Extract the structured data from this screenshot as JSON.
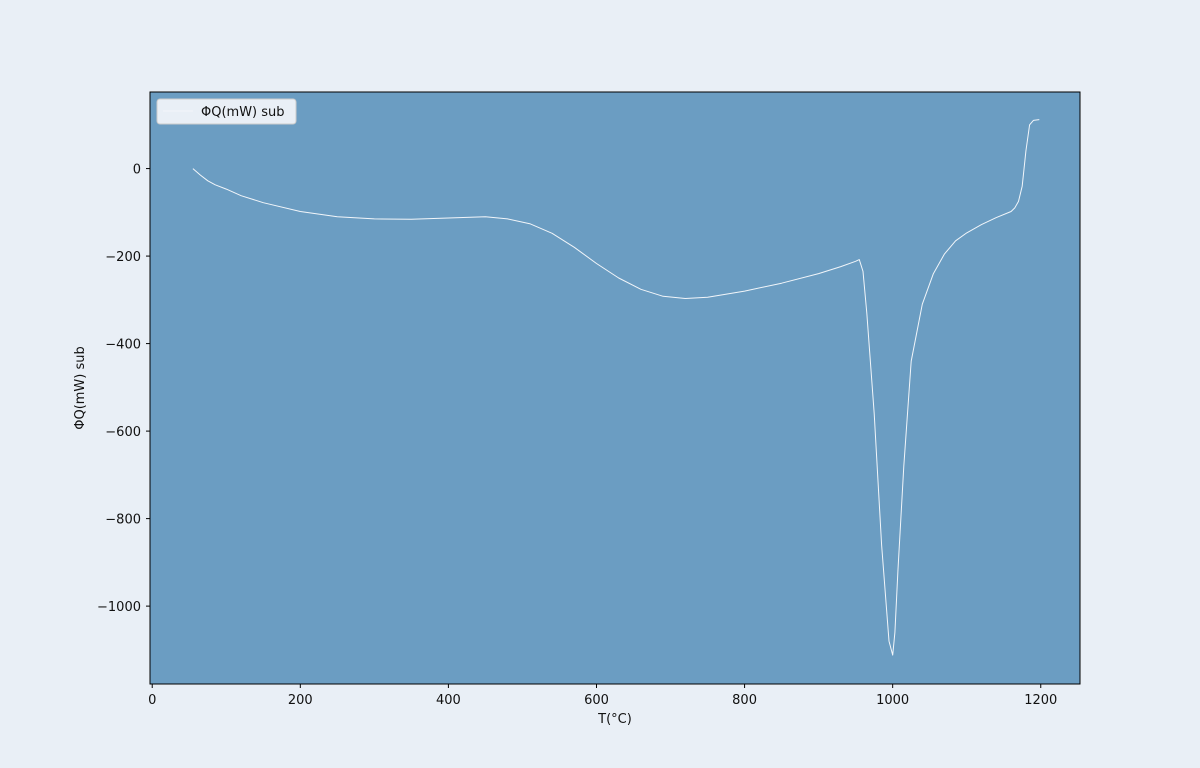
{
  "chart_data": {
    "type": "line",
    "title": "",
    "xlabel": "T(°C)",
    "ylabel": "ΦQ(mW) sub",
    "xlim": [
      -3,
      1253
    ],
    "ylim": [
      -1178,
      175
    ],
    "xticks": [
      0,
      200,
      400,
      600,
      800,
      1000,
      1200
    ],
    "yticks": [
      0,
      -200,
      -400,
      -600,
      -800,
      -1000
    ],
    "xtick_labels": [
      "0",
      "200",
      "400",
      "600",
      "800",
      "1000",
      "1200"
    ],
    "ytick_labels": [
      "0",
      "−200",
      "−400",
      "−600",
      "−800",
      "−1000"
    ],
    "grid": false,
    "legend_position": "top-left",
    "colors": {
      "page_background": "#e9eff6",
      "plot_background": "#6b9dc2",
      "line": "#f2f6fa",
      "legend_background": "#e9eff6"
    },
    "series": [
      {
        "name": "ΦQ(mW) sub",
        "x": [
          55,
          65,
          75,
          85,
          100,
          120,
          150,
          200,
          250,
          300,
          350,
          400,
          450,
          480,
          510,
          540,
          570,
          600,
          630,
          660,
          690,
          720,
          750,
          800,
          850,
          900,
          930,
          950,
          955,
          960,
          965,
          975,
          985,
          995,
          1000,
          1003,
          1007,
          1015,
          1025,
          1040,
          1055,
          1070,
          1085,
          1100,
          1120,
          1140,
          1160,
          1165,
          1170,
          1175,
          1180,
          1185,
          1190,
          1198
        ],
        "y": [
          0,
          -15,
          -28,
          -37,
          -47,
          -62,
          -78,
          -98,
          -110,
          -115,
          -116,
          -113,
          -110,
          -115,
          -126,
          -148,
          -180,
          -217,
          -250,
          -276,
          -292,
          -297,
          -294,
          -280,
          -262,
          -240,
          -224,
          -212,
          -208,
          -235,
          -330,
          -560,
          -860,
          -1080,
          -1112,
          -1060,
          -920,
          -680,
          -440,
          -310,
          -240,
          -195,
          -165,
          -147,
          -128,
          -112,
          -98,
          -90,
          -75,
          -40,
          40,
          100,
          110,
          112
        ]
      }
    ]
  }
}
